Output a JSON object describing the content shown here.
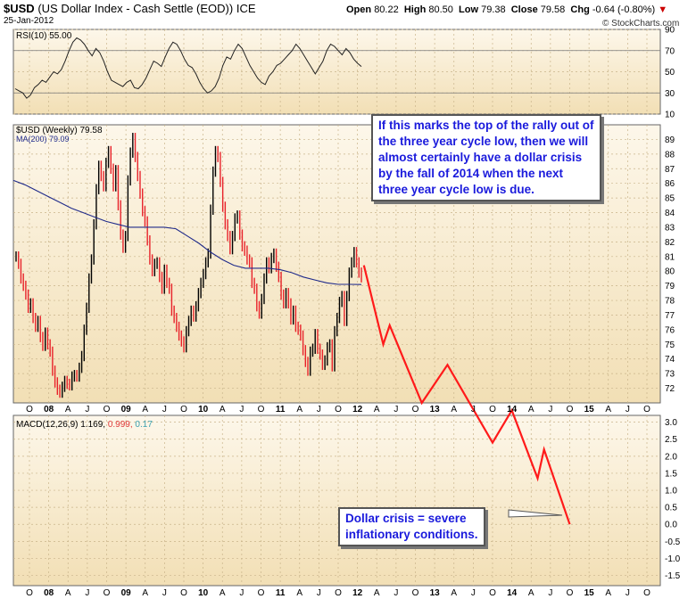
{
  "header": {
    "symbol": "$USD",
    "name": "(US Dollar Index - Cash Settle (EOD))",
    "exchange": "ICE",
    "date": "25-Jan-2012",
    "open_label": "Open",
    "open": "80.22",
    "high_label": "High",
    "high": "80.50",
    "low_label": "Low",
    "low": "79.38",
    "close_label": "Close",
    "close": "79.58",
    "chg_label": "Chg",
    "chg": "-0.64 (-0.80%)",
    "watermark": "© StockCharts.com"
  },
  "colors": {
    "panel_bg": "#f2dfb5",
    "up": "#000000",
    "down": "#e8222a",
    "ma": "#1f2a8a",
    "projection": "#ff1a1a",
    "callout_text": "#1a1adc",
    "macd_signal": "#e03a3a",
    "macd_hist": "#39a0b0"
  },
  "annotations": {
    "main_callout": [
      "If this marks the top of the rally out of",
      "the three year cycle low, then we will",
      "almost certainly have a dollar crisis",
      "by the fall of 2014 when the next",
      "three year cycle low is due."
    ],
    "macd_callout": [
      "Dollar crisis = severe",
      "inflationary conditions."
    ]
  },
  "chart_data": [
    {
      "type": "line",
      "title": "RSI(10) 55.00",
      "series": [
        {
          "name": "RSI(10)",
          "values": [
            34,
            32,
            30,
            25,
            28,
            35,
            38,
            42,
            40,
            45,
            50,
            48,
            52,
            60,
            70,
            78,
            82,
            80,
            76,
            70,
            65,
            72,
            68,
            60,
            50,
            42,
            40,
            38,
            36,
            40,
            42,
            35,
            34,
            38,
            44,
            52,
            60,
            58,
            55,
            64,
            72,
            78,
            76,
            70,
            62,
            56,
            54,
            48,
            40,
            34,
            30,
            32,
            36,
            44,
            56,
            64,
            62,
            70,
            76,
            72,
            64,
            56,
            50,
            44,
            40,
            38,
            46,
            50,
            56,
            58,
            62,
            66,
            70,
            76,
            72,
            66,
            60,
            54,
            48,
            54,
            60,
            70,
            76,
            74,
            70,
            66,
            72,
            68,
            62,
            58,
            55
          ]
        }
      ],
      "ylim": [
        10,
        90
      ],
      "yticks": [
        10,
        30,
        50,
        70,
        90
      ],
      "reference_lines": [
        30,
        70
      ]
    },
    {
      "type": "candlestick",
      "title": "$USD (Weekly) 79.58",
      "series": [
        {
          "name": "$USD (Weekly)",
          "values": [
            81,
            80.5,
            79.5,
            79,
            78.4,
            77.5,
            77.8,
            76.8,
            76.2,
            76.6,
            75.5,
            74.9,
            75.8,
            75,
            74.5,
            73.2,
            72.4,
            71.9,
            71.7,
            72.1,
            72.5,
            72.3,
            72.2,
            72.8,
            72.9,
            72.8,
            73.4,
            74.2,
            76,
            77.5,
            79.5,
            80.8,
            83.2,
            85.6,
            87.2,
            86.5,
            85.8,
            87.4,
            88.2,
            87,
            85.8,
            86.9,
            84.5,
            82.5,
            81.6,
            82.4,
            86.2,
            88.1,
            89.1,
            87.8,
            86.5,
            85.3,
            84.1,
            83.4,
            82.1,
            80.8,
            80,
            80.5,
            80.6,
            79.6,
            78.8,
            80.1,
            79.2,
            78.8,
            77.3,
            76.8,
            76.2,
            75.6,
            75.2,
            74.8,
            75.9,
            76.6,
            77.3,
            76.9,
            77.6,
            78.5,
            79.2,
            79.8,
            80.6,
            81.2,
            84.2,
            86.8,
            88.2,
            87.8,
            86.1,
            84.4,
            83.2,
            82.4,
            81.5,
            82.4,
            83.6,
            83.8,
            82.5,
            81.7,
            81.4,
            80.8,
            80.6,
            79.2,
            78.8,
            77.6,
            77.1,
            78.1,
            79.5,
            80.6,
            80.2,
            80.9,
            81.2,
            80.3,
            79.6,
            78.4,
            77.8,
            78.5,
            77.8,
            76.7,
            77.3,
            76.2,
            76,
            75.6,
            74.6,
            73.8,
            73.2,
            74.5,
            74.7,
            75.7,
            74.7,
            74.3,
            73.6,
            73.9,
            74.8,
            75,
            73.5,
            75.9,
            76.8,
            77.9,
            78.3,
            76.6,
            78.3,
            79.9,
            80.6,
            81.3,
            80.6,
            79.9,
            79.58
          ]
        },
        {
          "name": "MA(200) 79.09",
          "values": [
            86.2,
            85.9,
            85.5,
            85.1,
            84.7,
            84.3,
            84,
            83.7,
            83.4,
            83.2,
            83,
            83,
            83,
            83,
            82.9,
            82.4,
            81.9,
            81.3,
            80.8,
            80.4,
            80.2,
            80.2,
            80.2,
            80.1,
            79.9,
            79.6,
            79.4,
            79.2,
            79.1,
            79.1,
            79.09
          ]
        }
      ],
      "ylim": [
        71,
        90
      ],
      "yticks": [
        72,
        73,
        74,
        75,
        76,
        77,
        78,
        79,
        80,
        81,
        82,
        83,
        84,
        85,
        86,
        87,
        88,
        89
      ]
    },
    {
      "type": "line",
      "title": "MACD(12,26,9) 1.169, 0.999, 0.170",
      "series": [
        {
          "name": "MACD(12,26,9)",
          "values": [
            1.169,
            0.999,
            0.17
          ]
        }
      ],
      "ylim": [
        -1.8,
        3.2
      ],
      "yticks": [
        -1.5,
        -1.0,
        -0.5,
        0.0,
        0.5,
        1.0,
        1.5,
        2.0,
        2.5,
        3.0
      ]
    },
    {
      "type": "line",
      "title": "",
      "series": [
        {
          "name": "",
          "values": [
            {
              "x": "2012-02",
              "y": 80.4
            },
            {
              "x": "2012-05",
              "y": 75.0
            },
            {
              "x": "2012-06",
              "y": 76.3
            },
            {
              "x": "2012-11",
              "y": 71.0
            },
            {
              "x": "2013-03",
              "y": 73.6
            },
            {
              "x": "2013-10",
              "y": 2.4
            },
            {
              "x": "2014-01",
              "y": 3.35
            },
            {
              "x": "2014-05",
              "y": 1.35
            },
            {
              "x": "2014-06",
              "y": 2.2
            },
            {
              "x": "2014-10",
              "y": 0.0
            }
          ]
        }
      ]
    }
  ],
  "x_axis": {
    "labels": [
      "O",
      "08",
      "A",
      "J",
      "O",
      "09",
      "A",
      "J",
      "O",
      "10",
      "A",
      "J",
      "O",
      "11",
      "A",
      "J",
      "O",
      "12",
      "A",
      "J",
      "O",
      "13",
      "A",
      "J",
      "O",
      "14",
      "A",
      "J",
      "O",
      "15",
      "A",
      "J",
      "O"
    ]
  }
}
